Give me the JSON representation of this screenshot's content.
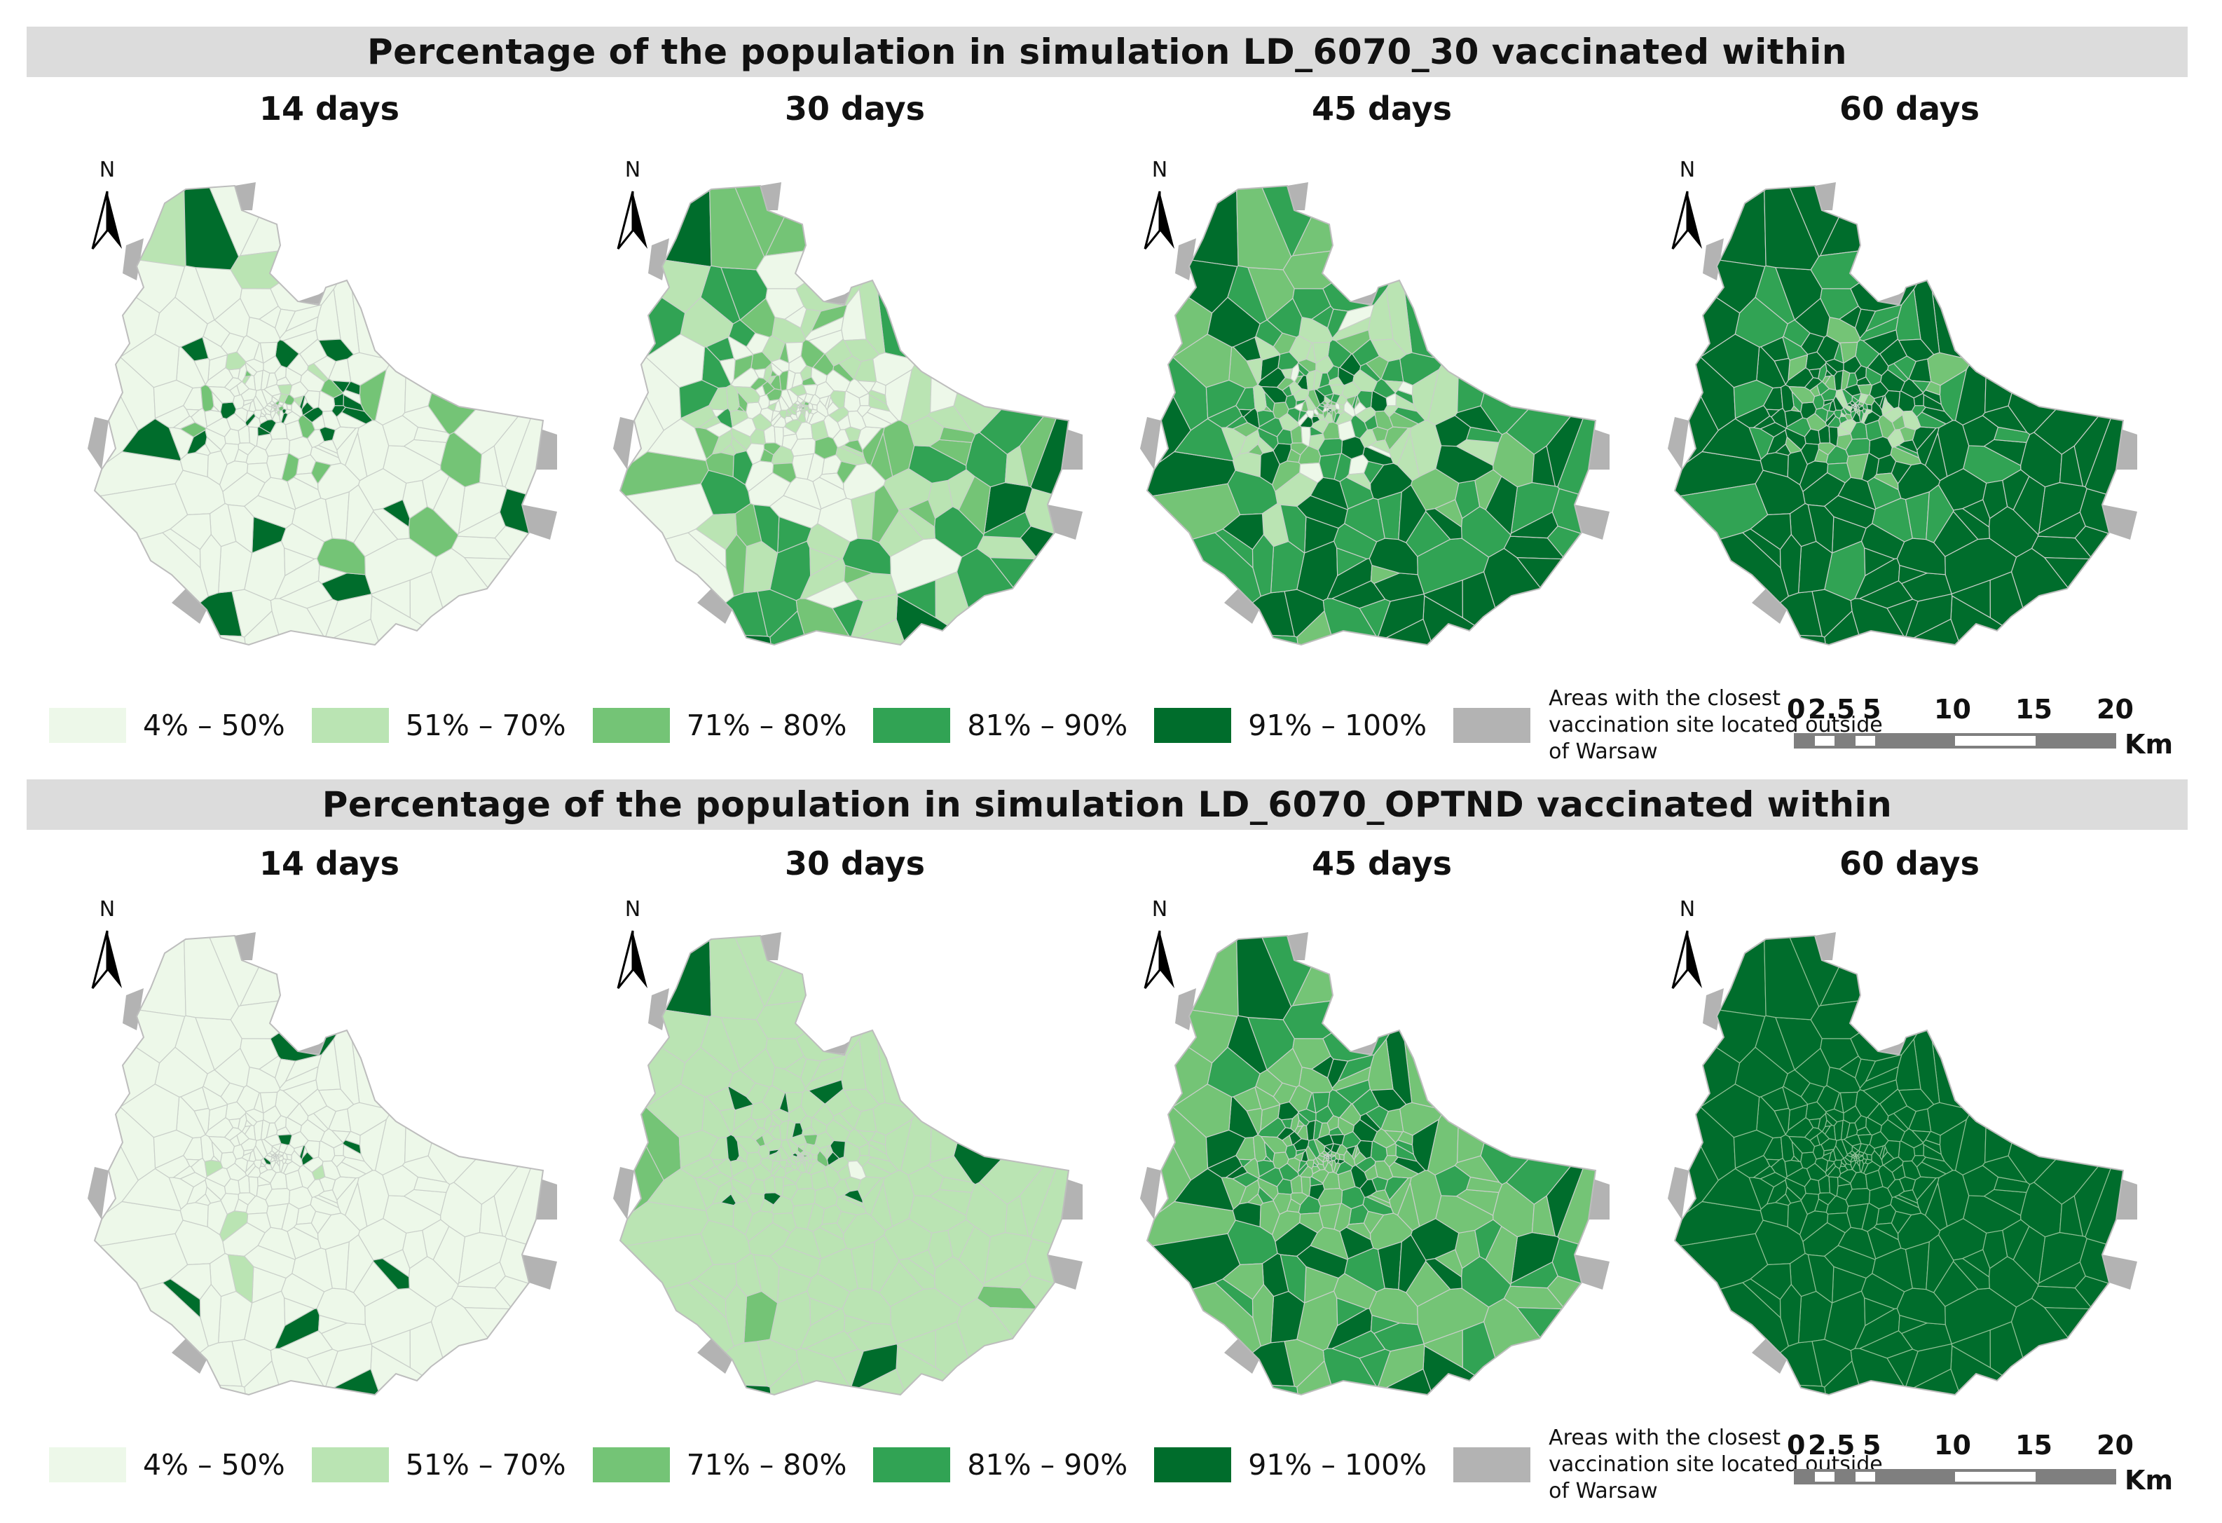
{
  "panels": [
    {
      "title": "Percentage of the population in simulation LD_6070_30 vaccinated within",
      "maps": [
        {
          "period": "14 days",
          "dominant_class": "4% – 50%"
        },
        {
          "period": "30 days",
          "dominant_class": "mixed"
        },
        {
          "period": "45 days",
          "dominant_class": "mixed"
        },
        {
          "period": "60 days",
          "dominant_class": "91% – 100%"
        }
      ]
    },
    {
      "title": "Percentage of the population in simulation LD_6070_OPTND vaccinated within",
      "maps": [
        {
          "period": "14 days",
          "dominant_class": "4% – 50%"
        },
        {
          "period": "30 days",
          "dominant_class": "51% – 70%"
        },
        {
          "period": "45 days",
          "dominant_class": "71% – 80%"
        },
        {
          "period": "60 days",
          "dominant_class": "91% – 100%"
        }
      ]
    }
  ],
  "legend": {
    "classes": [
      {
        "label": "4% – 50%",
        "color": "#edf8e9"
      },
      {
        "label": "51% – 70%",
        "color": "#bae4b3"
      },
      {
        "label": "71% – 80%",
        "color": "#74c476"
      },
      {
        "label": "81% – 90%",
        "color": "#31a354"
      },
      {
        "label": "91% – 100%",
        "color": "#006d2c"
      }
    ],
    "outside_label": "Areas with the closest vaccination site located outside of Warsaw",
    "outside_color": "#b3b3b3"
  },
  "scalebar": {
    "ticks": [
      "0",
      "2.5",
      "5",
      "10",
      "15",
      "20"
    ],
    "unit": "Km"
  },
  "north_label": "N"
}
